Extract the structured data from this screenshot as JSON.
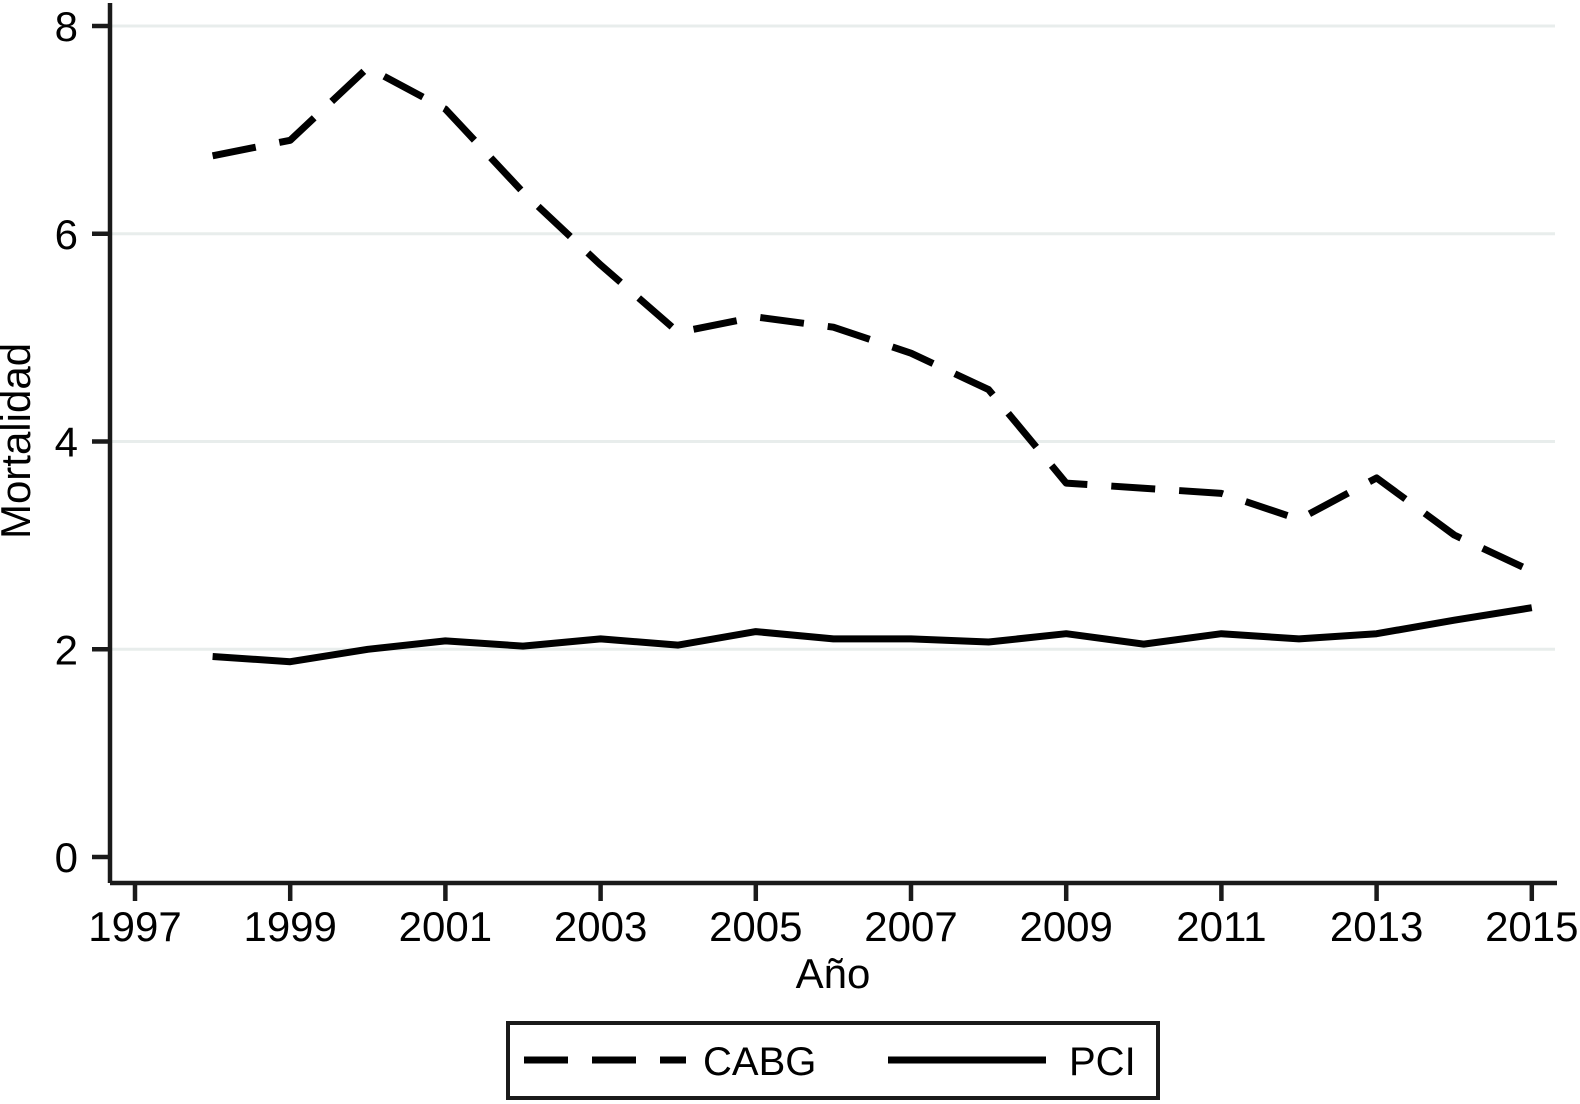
{
  "chart_data": {
    "type": "line",
    "title": "",
    "xlabel": "Año",
    "ylabel": "Mortalidad",
    "x": [
      1998,
      1999,
      2000,
      2001,
      2002,
      2003,
      2004,
      2005,
      2006,
      2007,
      2008,
      2009,
      2010,
      2011,
      2012,
      2013,
      2014,
      2015
    ],
    "series": [
      {
        "name": "CABG",
        "line_style": "dashed",
        "values": [
          6.75,
          6.9,
          7.6,
          7.2,
          6.4,
          5.7,
          5.05,
          5.2,
          5.1,
          4.85,
          4.5,
          3.6,
          3.55,
          3.5,
          3.25,
          3.65,
          3.1,
          2.75
        ]
      },
      {
        "name": "PCI",
        "line_style": "solid",
        "values": [
          1.93,
          1.88,
          2.0,
          2.08,
          2.03,
          2.1,
          2.04,
          2.17,
          2.1,
          2.1,
          2.07,
          2.15,
          2.05,
          2.15,
          2.1,
          2.15,
          2.28,
          2.4
        ]
      }
    ],
    "x_ticks": [
      1997,
      1999,
      2001,
      2003,
      2005,
      2007,
      2009,
      2011,
      2013,
      2015
    ],
    "y_ticks": [
      0,
      2,
      4,
      6,
      8
    ],
    "xlim": [
      1996.7,
      2015.3
    ],
    "ylim": [
      0,
      8.2
    ],
    "grid": "horizontal-only",
    "legend_position": "bottom-center-boxed",
    "colors": {
      "line": "#000000",
      "axis": "#1a1a1a",
      "gridline": "#e8edec",
      "background": "#ffffff"
    }
  }
}
